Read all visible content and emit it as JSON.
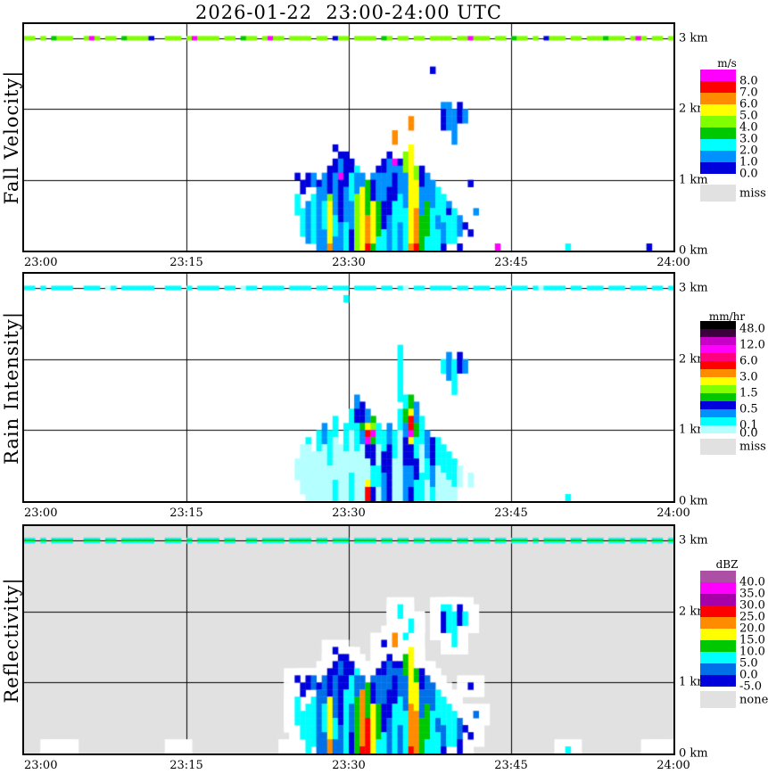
{
  "title": "2026-01-22  23:00-24:00 UTC",
  "x_axis": {
    "label_type": "time UTC",
    "ticks": [
      "23:00",
      "23:15",
      "23:30",
      "23:45",
      "24:00"
    ]
  },
  "y_axis": {
    "label_type": "height",
    "ticks": [
      "3 km",
      "2 km",
      "1 km",
      "0 km"
    ],
    "range_km": [
      0,
      3.2
    ]
  },
  "palette": {
    "k": "#000000",
    "q": "#3C003C",
    "P": "#C800C8",
    "m": "#FF00FF",
    "h": "#FF0080",
    "r": "#FF0000",
    "o": "#FF8C00",
    "y": "#FFFF00",
    "l": "#80FF00",
    "g": "#00C800",
    "c": "#00FFFF",
    "w": "#B4FFFF",
    "d": "#0090FF",
    "u": "#0070E8",
    "b": "#0000DC",
    "p": "#A800A8",
    "v": "#AC50A5",
    "W": "#FFFFFF",
    "miss_gray": "#E1E1E1"
  },
  "chart_data": [
    {
      "type": "heatmap",
      "name": "Fall Velocity",
      "ylabel": "Fall Velocity|",
      "background": "#FFFFFF",
      "halo": false,
      "legend": {
        "title": "m/s",
        "boxes": [
          "m",
          "r",
          "o",
          "y",
          "l",
          "g",
          "c",
          "d",
          "b"
        ],
        "labels": [
          {
            "text": "8.0",
            "after_box": 0
          },
          {
            "text": "7.0",
            "after_box": 1
          },
          {
            "text": "6.0",
            "after_box": 2
          },
          {
            "text": "5.0",
            "after_box": 3
          },
          {
            "text": "4.0",
            "after_box": 4
          },
          {
            "text": "3.0",
            "after_box": 5
          },
          {
            "text": "2.0",
            "after_box": 6
          },
          {
            "text": "1.0",
            "after_box": 7
          },
          {
            "text": "0.0",
            "after_box": 8
          }
        ],
        "extra": {
          "label": "miss",
          "color_key": "miss_gray"
        }
      },
      "band_3km": {
        "base": "l",
        "overrides": {
          "5": "g",
          "12": "m",
          "18": "g",
          "23": "b",
          "31": "m",
          "40": "g",
          "45": "m",
          "57": "b",
          "66": "g",
          "82": "m",
          "90": "g",
          "96": "b",
          "107": "g",
          "113": "m"
        }
      },
      "cells": {
        "50": "21b,24-26c",
        "51": "22-23b,26-29c",
        "52": "21-22b,25-30d",
        "53": "21-22d,24-30c",
        "54": "22b,23-31d",
        "55": "21-24d,25-28c,29-31d",
        "56": "20-23b,24l,25-30y,31o",
        "57": "17b,19-20b,21-26d,27-29c,30-31d",
        "58": "18b,19-20d,21m,22-27b,28-31d",
        "59": "18-22b,23-27d,28-31c",
        "60": "19-20b,21-24c,25-28d,29-31b",
        "61": "20c,21-23d,24-31l",
        "62": "21-22d,23-31y",
        "63": "22-26g,27-30o,31r",
        "64": "21d,22-24b,25-30y,31g",
        "65": "20b,21-24d,25-29g,30-31c",
        "66": "19-20b,21-24d,25-28b,29-31c",
        "67": "18b,19-22d,23-26b,27-31d",
        "68": "15-16o,19m,20d,21-24b,25-31c",
        "69": "19b,20-23d,24-27c,28-31d",
        "70": "18-20l,21-25d,26-31c",
        "71": "13-14o,17-30y,31o",
        "72": "20-21l,22-25y,26-30o,31r",
        "73": "20-22b,23-26d,27-31g",
        "74": "21-24d,25-29g,30-31c",
        "75": "6b,22-25d,26-31c",
        "76": "23-26c,27-28d,29-31c",
        "77": "11d,12-14b,24-27c,28-30d,31b",
        "78": "11-14d,25d,26b,27-30c",
        "79": "12-16d,26-30c",
        "80": "11-13b,27-29d,31b",
        "81": "12-13d,28b",
        "82": "22b,29b",
        "83": "26d",
        "87": "31m",
        "100": "31c",
        "115": "31b"
      }
    },
    {
      "type": "heatmap",
      "name": "Rain Intensity",
      "ylabel": "Rain Intensity|",
      "background": "#FFFFFF",
      "halo": false,
      "legend": {
        "title": "mm/hr",
        "boxes": [
          "k",
          "q",
          "P",
          "m",
          "h",
          "r",
          "o",
          "y",
          "l",
          "g",
          "b",
          "d",
          "c",
          "w"
        ],
        "labels": [
          {
            "text": "48.0",
            "after_box": 0
          },
          {
            "text": "12.0",
            "after_box": 2
          },
          {
            "text": "6.0",
            "after_box": 4
          },
          {
            "text": "3.0",
            "after_box": 6
          },
          {
            "text": "1.5",
            "after_box": 8
          },
          {
            "text": "0.5",
            "after_box": 10
          },
          {
            "text": "0.1",
            "after_box": 12
          },
          {
            "text": "0.0",
            "after_box": 13
          }
        ],
        "extra": {
          "label": "miss",
          "color_key": "miss_gray"
        }
      },
      "band_3km": {
        "base": "c",
        "overrides": {
          "15": "w",
          "40": "w",
          "70": "w",
          "95": "w"
        }
      },
      "cells": {
        "50": "26-28w",
        "51": "24-30w",
        "52": "23c,24-31w",
        "53": "25-31w",
        "54": "22-24c,25-31w",
        "55": "21-23d,24-31w",
        "56": "22-26c,27-31w",
        "57": "20-22c,23-28w,29-31c",
        "58": "24-31w",
        "59": "3c,21-24c,25-31w",
        "60": "19-21c,22-27w,28-31c",
        "61": "17-18d,19-20b,21-24c,25-31w",
        "62": "18-20b,21g,22-23d,24-31w",
        "63": "19-20d,21y,22r,23m,24-25b,26-28w,29y,30-31r",
        "64": "20g,21l,22m,23g,24-26b,27-29c,30-31b",
        "65": "21-23c,24-26w,27-29c,30-31w",
        "66": "22-24c,25-27b,28-31d",
        "67": "21-23d,24-31b",
        "68": "22-25c,26-31w",
        "69": "10-17c,19-21c,22-31w",
        "70": "17-18c,19-20g,21-22d,23-26b,27-31d",
        "71": "17-18g,19y,20-21r,22m,23y,24-26b,27-29d,30-31b",
        "72": "18-20d,21-22g,23-25c,26-28b,29-31c",
        "73": "20-23c,24-27w,28-31c",
        "74": "22-25d,26-28c,29-31w",
        "75": "23-26b,27-29d,30-31c",
        "76": "23-26c,27-31w",
        "77": "12-13c,24-27c,28-31w",
        "78": "11-14d,25-28c,29-31w",
        "79": "12-16c,26-29c,30-31w",
        "80": "11-13b,27-29w",
        "81": "12-13d",
        "82": "28-29w",
        "100": "31c"
      }
    },
    {
      "type": "heatmap",
      "name": "Reflectivity",
      "ylabel": "Reflectivity|",
      "background": "#E1E1E1",
      "halo": true,
      "legend": {
        "title": "dBZ",
        "boxes": [
          "v",
          "m",
          "p",
          "r",
          "o",
          "y",
          "g",
          "c",
          "u",
          "b"
        ],
        "labels": [
          {
            "text": "40.0",
            "after_box": 0
          },
          {
            "text": "35.0",
            "after_box": 1
          },
          {
            "text": "30.0",
            "after_box": 2
          },
          {
            "text": "25.0",
            "after_box": 3
          },
          {
            "text": "20.0",
            "after_box": 4
          },
          {
            "text": "15.0",
            "after_box": 5
          },
          {
            "text": "10.0",
            "after_box": 6
          },
          {
            "text": "5.0",
            "after_box": 7
          },
          {
            "text": "0.0",
            "after_box": 8
          },
          {
            "text": "-5.0",
            "after_box": 9
          }
        ],
        "extra": {
          "label": "none",
          "color_key": "miss_gray"
        }
      },
      "band_3km": {
        "base": "cgc",
        "overrides": {}
      },
      "cells": {
        "5": "31W",
        "6": "31W",
        "7": "31W",
        "28": "31W",
        "49": "31W",
        "50": "21b,24-27c,31W",
        "51": "22-23b,26-29c",
        "52": "21-22b,25-31c",
        "53": "21-22u,24-30c",
        "54": "22b,23-31u",
        "55": "21-24u,25-28c,29-31u",
        "56": "20-23b,24-29y,30-31o",
        "57": "17b,19-20b,21-26u,27-29c,30-31u",
        "58": "18b,19-20u,21-27b,28-31u",
        "59": "18-22b,23-31c",
        "60": "19-20b,21-24c,25-28u,29-31b",
        "61": "20c,21-23u,24-31g",
        "62": "21-22u,23-30o,31r",
        "63": "22-26g,27-31r",
        "64": "21u,22-24b,25-31y",
        "65": "20b,21-24u,25-29g,30-31c",
        "66": "16b,19-20b,21-24u,25-28b,29-31c",
        "67": "18b,19-22u,23-26b,27-31u",
        "68": "15-16o,19b,20u,21-24b,25-31c",
        "69": "11-12c,19b,20-23u,24-27c,28-31u",
        "70": "15c,18-20g,21-25u,26-31c",
        "71": "13-14c,17-24y,25-30o,31r",
        "72": "20-21g,22-25y,26-31o",
        "73": "20-22b,23-26u,27-31g",
        "74": "21-24u,25-29g,30-31c",
        "75": "22-25u,26-31c",
        "76": "23-26c,27-28u,29-31c",
        "77": "11c,12-14b,24-27c,28-30u,31b",
        "78": "11-14c,25-30c",
        "79": "12-16c,26-30c",
        "80": "11-13b,27-29u,30-31b",
        "81": "12-13c,28b",
        "82": "22b,29b",
        "83": "26u",
        "100": "31c",
        "116": "31W",
        "117": "31W"
      }
    }
  ],
  "band_pattern": "110101111001110110111111001110101111011001101111011110110111011110110110110111101101110110111010111101101110111011101101"
}
